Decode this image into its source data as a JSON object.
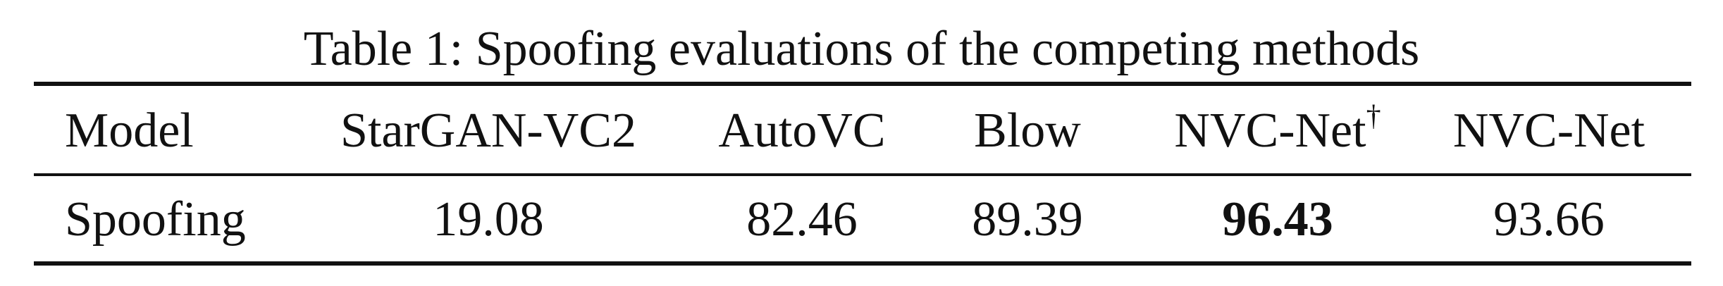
{
  "caption": "Table 1: Spoofing evaluations of the competing methods",
  "table": {
    "headers": [
      "Model",
      "StarGAN-VC2",
      "AutoVC",
      "Blow",
      "NVC-Net",
      "NVC-Net"
    ],
    "header_superscripts": {
      "4": "†"
    },
    "rows": [
      {
        "label": "Spoofing",
        "values": [
          "19.08",
          "82.46",
          "89.39",
          "96.43",
          "93.66"
        ]
      }
    ],
    "bold_cell": "96.43"
  }
}
